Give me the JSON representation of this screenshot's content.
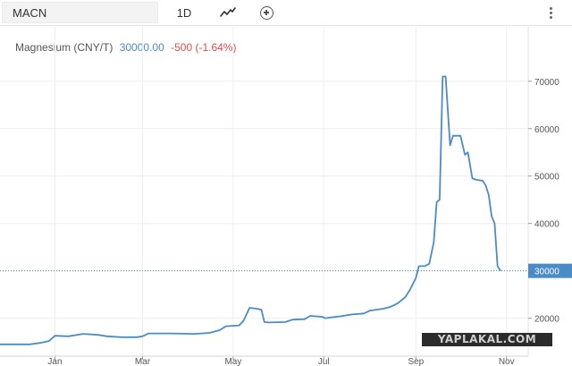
{
  "toolbar": {
    "symbol_value": "MACN",
    "interval_label": "1D",
    "chart_type_icon": "line-chart-icon",
    "add_icon": "plus-circle-icon",
    "menu_icon": "vertical-ellipsis-icon"
  },
  "legend": {
    "name": "Magnesium (CNY/T)",
    "price": "30000.00",
    "change": "-500 (-1.64%)"
  },
  "watermark": "YAPLAKAL.COM",
  "colors": {
    "line": "#4a8bc8",
    "change_negative": "#e04b4b",
    "price_badge": "#4a8bc8",
    "grid": "#eeeeee"
  },
  "chart_data": {
    "type": "line",
    "title": "",
    "xlabel": "",
    "ylabel": "",
    "x_ticks": [
      "Jan",
      "Mar",
      "May",
      "Jul",
      "Sep",
      "Nov"
    ],
    "y_ticks": [
      20000,
      30000,
      40000,
      50000,
      60000,
      70000
    ],
    "ylim": [
      12000,
      76000
    ],
    "xlim": [
      "2020-11-25",
      "2021-11-12"
    ],
    "grid": true,
    "last_value_label": "30000",
    "series": [
      {
        "points": [
          [
            "2020-11-25",
            14500
          ],
          [
            "2020-12-15",
            14500
          ],
          [
            "2020-12-22",
            14800
          ],
          [
            "2020-12-28",
            15200
          ],
          [
            "2021-01-01",
            16300
          ],
          [
            "2021-01-10",
            16200
          ],
          [
            "2021-01-20",
            16700
          ],
          [
            "2021-01-30",
            16500
          ],
          [
            "2021-02-05",
            16200
          ],
          [
            "2021-02-15",
            16000
          ],
          [
            "2021-02-25",
            16000
          ],
          [
            "2021-03-01",
            16200
          ],
          [
            "2021-03-05",
            16800
          ],
          [
            "2021-03-20",
            16800
          ],
          [
            "2021-04-05",
            16700
          ],
          [
            "2021-04-15",
            16900
          ],
          [
            "2021-04-22",
            17500
          ],
          [
            "2021-04-26",
            18300
          ],
          [
            "2021-05-05",
            18500
          ],
          [
            "2021-05-08",
            19500
          ],
          [
            "2021-05-12",
            22200
          ],
          [
            "2021-05-17",
            22000
          ],
          [
            "2021-05-20",
            21800
          ],
          [
            "2021-05-22",
            19200
          ],
          [
            "2021-05-25",
            19100
          ],
          [
            "2021-06-05",
            19200
          ],
          [
            "2021-06-10",
            19700
          ],
          [
            "2021-06-18",
            19800
          ],
          [
            "2021-06-22",
            20500
          ],
          [
            "2021-06-30",
            20300
          ],
          [
            "2021-07-02",
            20000
          ],
          [
            "2021-07-06",
            20200
          ],
          [
            "2021-07-12",
            20400
          ],
          [
            "2021-07-20",
            20800
          ],
          [
            "2021-07-28",
            21000
          ],
          [
            "2021-08-01",
            21600
          ],
          [
            "2021-08-10",
            22000
          ],
          [
            "2021-08-15",
            22400
          ],
          [
            "2021-08-20",
            23200
          ],
          [
            "2021-08-25",
            24500
          ],
          [
            "2021-08-28",
            26000
          ],
          [
            "2021-09-01",
            28500
          ],
          [
            "2021-09-03",
            31000
          ],
          [
            "2021-09-07",
            31000
          ],
          [
            "2021-09-10",
            31500
          ],
          [
            "2021-09-13",
            36000
          ],
          [
            "2021-09-15",
            44500
          ],
          [
            "2021-09-17",
            45000
          ],
          [
            "2021-09-19",
            71000
          ],
          [
            "2021-09-21",
            71000
          ],
          [
            "2021-09-24",
            56500
          ],
          [
            "2021-09-26",
            58500
          ],
          [
            "2021-10-01",
            58500
          ],
          [
            "2021-10-04",
            54500
          ],
          [
            "2021-10-06",
            55000
          ],
          [
            "2021-10-09",
            49500
          ],
          [
            "2021-10-12",
            49200
          ],
          [
            "2021-10-16",
            49000
          ],
          [
            "2021-10-18",
            48000
          ],
          [
            "2021-10-20",
            46000
          ],
          [
            "2021-10-22",
            41500
          ],
          [
            "2021-10-24",
            40000
          ],
          [
            "2021-10-26",
            31000
          ],
          [
            "2021-10-28",
            30000
          ]
        ]
      }
    ]
  }
}
